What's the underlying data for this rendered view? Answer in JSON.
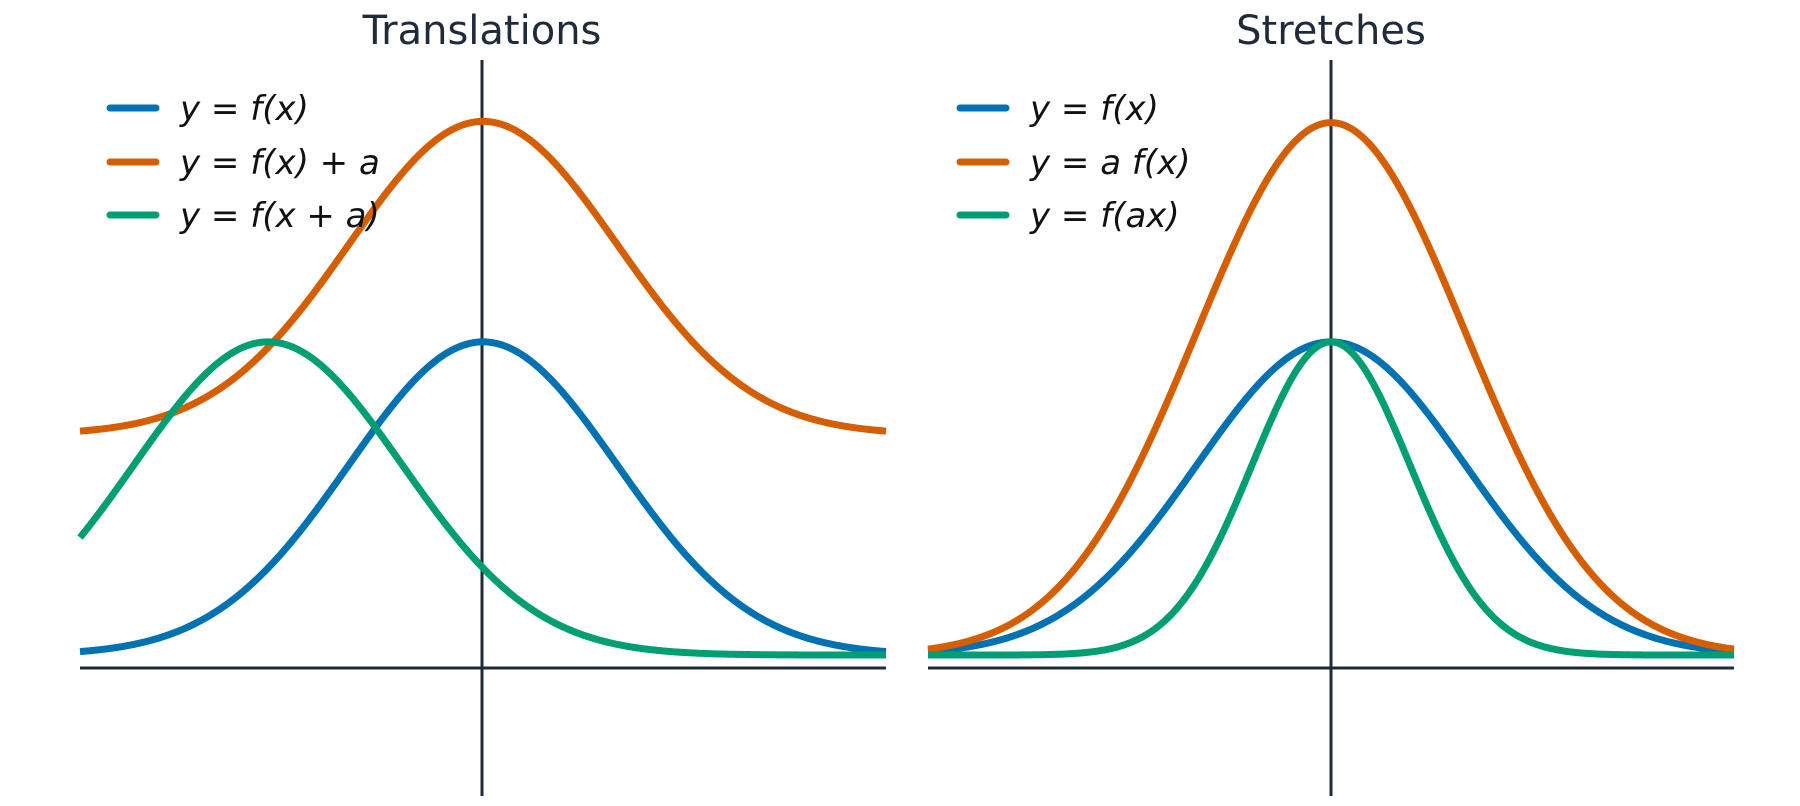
{
  "chart_data": [
    {
      "type": "line",
      "title": "Translations",
      "xlabel": "",
      "ylabel": "",
      "xlim": [
        -3,
        3
      ],
      "ylim": [
        -0.45,
        1.9
      ],
      "grid": false,
      "legend_position": "top-left",
      "parameter_a": 1.6,
      "series": [
        {
          "label": "y = f(x)",
          "color": "#0072B2",
          "formula": "f(x)"
        },
        {
          "label": "y = f(x) + a",
          "color": "#D55E00",
          "formula": "f(x)+a"
        },
        {
          "label": "y = f(x + a)",
          "color": "#009E73",
          "formula": "f(x+a)"
        }
      ]
    },
    {
      "type": "line",
      "title": "Stretches",
      "xlabel": "",
      "ylabel": "",
      "xlim": [
        -3,
        3
      ],
      "ylim": [
        -0.45,
        1.9
      ],
      "grid": false,
      "legend_position": "top-left",
      "parameter_a": 1.7,
      "series": [
        {
          "label": "y = f(x)",
          "color": "#0072B2",
          "formula": "f(x)"
        },
        {
          "label": "y = a f(x)",
          "color": "#D55E00",
          "formula": "a*f(x)"
        },
        {
          "label": "y = f(ax)",
          "color": "#009E73",
          "formula": "f(a*x)"
        }
      ]
    }
  ]
}
